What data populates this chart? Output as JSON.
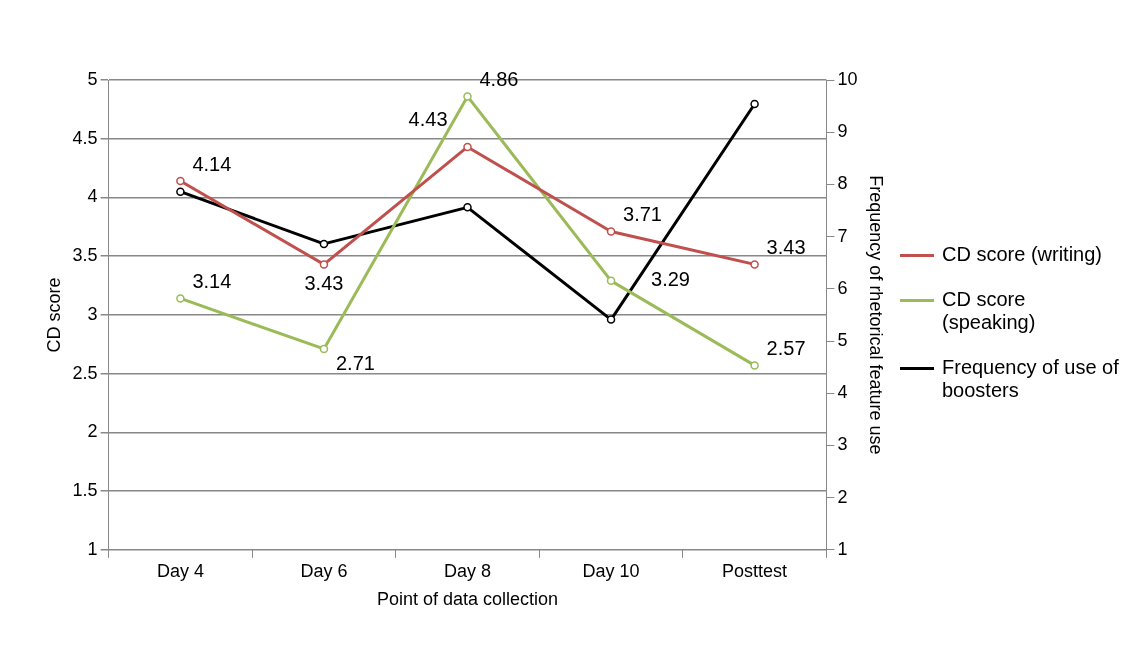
{
  "chart_data": {
    "type": "line",
    "xlabel": "Point of data collection",
    "ylabel": "CD score",
    "y2label": "Frequency of rhetorical feature use",
    "categories": [
      "Day 4",
      "Day 6",
      "Day 8",
      "Day 10",
      "Posttest"
    ],
    "series": [
      {
        "name": "CD score (writing)",
        "color": "#c0504d",
        "values": [
          4.14,
          3.43,
          4.43,
          3.71,
          3.43
        ],
        "value_labels": [
          "4.14",
          "3.43",
          "4.43",
          "3.71",
          "3.43"
        ]
      },
      {
        "name": "CD score (speaking)",
        "color": "#9bbb59",
        "values": [
          3.14,
          2.71,
          4.86,
          3.29,
          2.57
        ],
        "value_labels": [
          "3.14",
          "2.71",
          "4.86",
          "3.29",
          "2.57"
        ]
      },
      {
        "name": "Frequency of use of boosters",
        "color": "#000000",
        "axis": "y2",
        "values": [
          7.86,
          6.86,
          7.56,
          5.41,
          9.54
        ]
      }
    ],
    "ylim": [
      1,
      5
    ],
    "yticks": [
      1,
      1.5,
      2,
      2.5,
      3,
      3.5,
      4,
      4.5,
      5
    ],
    "y2lim": [
      1,
      10
    ],
    "y2ticks": [
      1,
      2,
      3,
      4,
      5,
      6,
      7,
      8,
      9,
      10
    ],
    "grid": "y",
    "legend": "right",
    "marker": "circle",
    "line_style": "solid"
  }
}
